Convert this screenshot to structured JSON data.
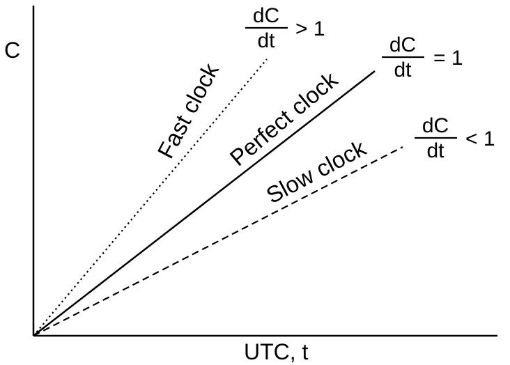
{
  "axes": {
    "y_label": "C",
    "x_label": "UTC, t"
  },
  "lines": [
    {
      "id": "fast",
      "label": "Fast clock",
      "style": "dotted",
      "fraction": {
        "numerator": "dC",
        "denominator": "dt"
      },
      "relation": "> 1"
    },
    {
      "id": "perfect",
      "label": "Perfect clock",
      "style": "solid",
      "fraction": {
        "numerator": "dC",
        "denominator": "dt"
      },
      "relation": "= 1"
    },
    {
      "id": "slow",
      "label": "Slow clock",
      "style": "dashed",
      "fraction": {
        "numerator": "dC",
        "denominator": "dt"
      },
      "relation": "< 1"
    }
  ],
  "colors": {
    "ink": "#000000",
    "background": "#ffffff"
  }
}
